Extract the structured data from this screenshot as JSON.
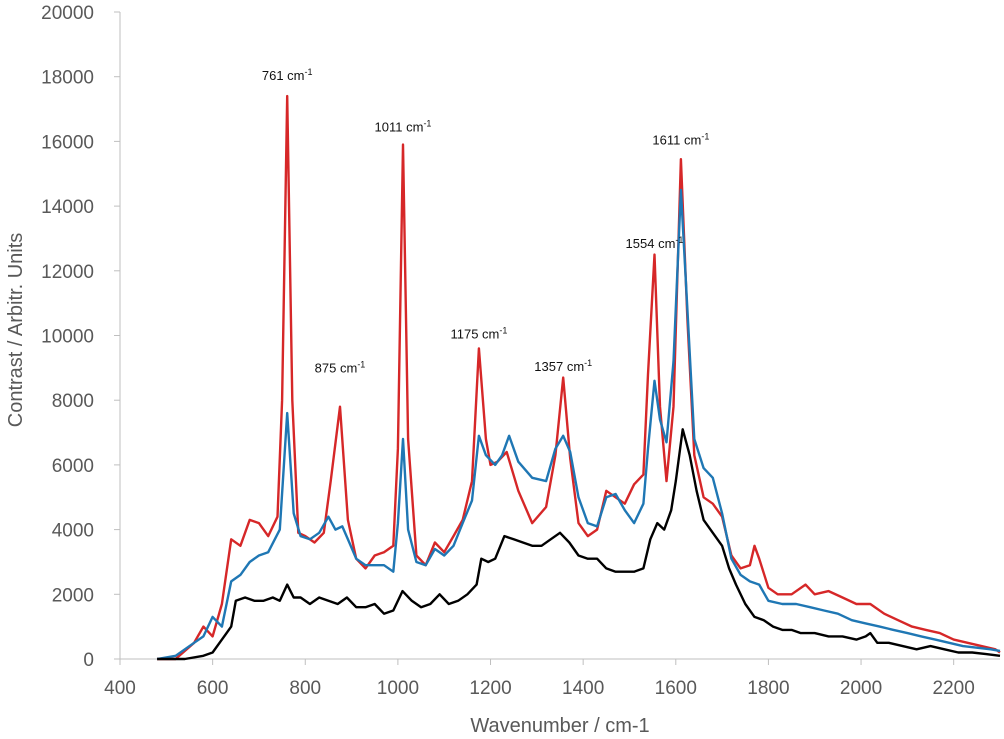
{
  "chart_data": {
    "type": "line",
    "title": "",
    "xlabel": "Wavenumber  / cm-1",
    "ylabel": "Contrast / Arbitr. Units",
    "xlim": [
      400,
      2300
    ],
    "ylim": [
      0,
      20000
    ],
    "xticks": [
      400,
      600,
      800,
      1000,
      1200,
      1400,
      1600,
      1800,
      2000,
      2200
    ],
    "yticks": [
      0,
      2000,
      4000,
      6000,
      8000,
      10000,
      12000,
      14000,
      16000,
      18000,
      20000
    ],
    "grid": false,
    "legend": "none",
    "annotations": [
      {
        "num": "761",
        "unit": " cm",
        "sup": "-1",
        "x": 761,
        "y": 17900
      },
      {
        "num": "875",
        "unit": " cm",
        "sup": "-1",
        "x": 875,
        "y": 8850
      },
      {
        "num": "1011",
        "unit": " cm",
        "sup": "-1",
        "x": 1011,
        "y": 16300
      },
      {
        "num": "1175",
        "unit": " cm",
        "sup": "-1",
        "x": 1175,
        "y": 9900
      },
      {
        "num": "1357",
        "unit": " cm",
        "sup": "-1",
        "x": 1357,
        "y": 8900
      },
      {
        "num": "1554",
        "unit": " cm",
        "sup": "-1",
        "x": 1554,
        "y": 12700
      },
      {
        "num": "1611",
        "unit": " cm",
        "sup": "-1",
        "x": 1611,
        "y": 15900
      }
    ],
    "series": [
      {
        "color": "#d62728",
        "points": [
          [
            480,
            0
          ],
          [
            520,
            0
          ],
          [
            560,
            500
          ],
          [
            580,
            1000
          ],
          [
            600,
            700
          ],
          [
            620,
            1700
          ],
          [
            640,
            3700
          ],
          [
            660,
            3500
          ],
          [
            680,
            4300
          ],
          [
            700,
            4200
          ],
          [
            720,
            3800
          ],
          [
            740,
            4400
          ],
          [
            750,
            8000
          ],
          [
            761,
            17400
          ],
          [
            772,
            8000
          ],
          [
            785,
            3900
          ],
          [
            800,
            3800
          ],
          [
            820,
            3600
          ],
          [
            840,
            3900
          ],
          [
            855,
            5500
          ],
          [
            875,
            7800
          ],
          [
            892,
            4300
          ],
          [
            910,
            3100
          ],
          [
            930,
            2800
          ],
          [
            950,
            3200
          ],
          [
            970,
            3300
          ],
          [
            990,
            3500
          ],
          [
            1000,
            6500
          ],
          [
            1011,
            15900
          ],
          [
            1022,
            6800
          ],
          [
            1040,
            3200
          ],
          [
            1060,
            2900
          ],
          [
            1080,
            3600
          ],
          [
            1100,
            3300
          ],
          [
            1120,
            3800
          ],
          [
            1140,
            4300
          ],
          [
            1160,
            5500
          ],
          [
            1175,
            9600
          ],
          [
            1190,
            6800
          ],
          [
            1200,
            6000
          ],
          [
            1215,
            6100
          ],
          [
            1235,
            6400
          ],
          [
            1260,
            5200
          ],
          [
            1290,
            4200
          ],
          [
            1320,
            4700
          ],
          [
            1340,
            6300
          ],
          [
            1357,
            8700
          ],
          [
            1372,
            6200
          ],
          [
            1390,
            4200
          ],
          [
            1410,
            3800
          ],
          [
            1430,
            4000
          ],
          [
            1450,
            5200
          ],
          [
            1470,
            5000
          ],
          [
            1490,
            4800
          ],
          [
            1510,
            5400
          ],
          [
            1530,
            5700
          ],
          [
            1540,
            8800
          ],
          [
            1554,
            12500
          ],
          [
            1566,
            7800
          ],
          [
            1580,
            5500
          ],
          [
            1595,
            7800
          ],
          [
            1611,
            15450
          ],
          [
            1625,
            10500
          ],
          [
            1640,
            6300
          ],
          [
            1660,
            5000
          ],
          [
            1680,
            4800
          ],
          [
            1700,
            4400
          ],
          [
            1720,
            3200
          ],
          [
            1740,
            2800
          ],
          [
            1760,
            2900
          ],
          [
            1770,
            3500
          ],
          [
            1780,
            3100
          ],
          [
            1800,
            2200
          ],
          [
            1820,
            2000
          ],
          [
            1850,
            2000
          ],
          [
            1880,
            2300
          ],
          [
            1900,
            2000
          ],
          [
            1930,
            2100
          ],
          [
            1960,
            1900
          ],
          [
            1990,
            1700
          ],
          [
            2020,
            1700
          ],
          [
            2050,
            1400
          ],
          [
            2080,
            1200
          ],
          [
            2110,
            1000
          ],
          [
            2140,
            900
          ],
          [
            2170,
            800
          ],
          [
            2200,
            600
          ],
          [
            2230,
            500
          ],
          [
            2260,
            400
          ],
          [
            2290,
            300
          ],
          [
            2300,
            200
          ]
        ]
      },
      {
        "color": "#1f77b4",
        "points": [
          [
            480,
            0
          ],
          [
            520,
            100
          ],
          [
            560,
            500
          ],
          [
            580,
            700
          ],
          [
            600,
            1300
          ],
          [
            620,
            1000
          ],
          [
            640,
            2400
          ],
          [
            660,
            2600
          ],
          [
            680,
            3000
          ],
          [
            700,
            3200
          ],
          [
            720,
            3300
          ],
          [
            745,
            4000
          ],
          [
            761,
            7600
          ],
          [
            775,
            4500
          ],
          [
            790,
            3800
          ],
          [
            810,
            3700
          ],
          [
            830,
            3900
          ],
          [
            850,
            4400
          ],
          [
            865,
            4000
          ],
          [
            880,
            4100
          ],
          [
            895,
            3600
          ],
          [
            910,
            3100
          ],
          [
            930,
            2900
          ],
          [
            950,
            2900
          ],
          [
            970,
            2900
          ],
          [
            990,
            2700
          ],
          [
            1000,
            4200
          ],
          [
            1011,
            6800
          ],
          [
            1022,
            4000
          ],
          [
            1040,
            3000
          ],
          [
            1060,
            2900
          ],
          [
            1080,
            3400
          ],
          [
            1100,
            3200
          ],
          [
            1120,
            3500
          ],
          [
            1140,
            4200
          ],
          [
            1160,
            4900
          ],
          [
            1175,
            6900
          ],
          [
            1190,
            6300
          ],
          [
            1210,
            6000
          ],
          [
            1225,
            6300
          ],
          [
            1240,
            6900
          ],
          [
            1260,
            6100
          ],
          [
            1290,
            5600
          ],
          [
            1320,
            5500
          ],
          [
            1340,
            6500
          ],
          [
            1357,
            6900
          ],
          [
            1372,
            6400
          ],
          [
            1390,
            5000
          ],
          [
            1410,
            4200
          ],
          [
            1430,
            4100
          ],
          [
            1450,
            5000
          ],
          [
            1470,
            5100
          ],
          [
            1490,
            4600
          ],
          [
            1510,
            4200
          ],
          [
            1530,
            4800
          ],
          [
            1540,
            6500
          ],
          [
            1554,
            8600
          ],
          [
            1566,
            7400
          ],
          [
            1580,
            6700
          ],
          [
            1595,
            9200
          ],
          [
            1611,
            14500
          ],
          [
            1625,
            10800
          ],
          [
            1640,
            6800
          ],
          [
            1660,
            5900
          ],
          [
            1680,
            5600
          ],
          [
            1700,
            4500
          ],
          [
            1720,
            3100
          ],
          [
            1740,
            2600
          ],
          [
            1760,
            2400
          ],
          [
            1780,
            2300
          ],
          [
            1800,
            1800
          ],
          [
            1830,
            1700
          ],
          [
            1860,
            1700
          ],
          [
            1890,
            1600
          ],
          [
            1920,
            1500
          ],
          [
            1950,
            1400
          ],
          [
            1980,
            1200
          ],
          [
            2010,
            1100
          ],
          [
            2040,
            1000
          ],
          [
            2070,
            900
          ],
          [
            2100,
            800
          ],
          [
            2130,
            700
          ],
          [
            2160,
            600
          ],
          [
            2190,
            500
          ],
          [
            2220,
            400
          ],
          [
            2250,
            350
          ],
          [
            2280,
            300
          ],
          [
            2300,
            250
          ]
        ]
      },
      {
        "color": "#000000",
        "points": [
          [
            480,
            0
          ],
          [
            540,
            0
          ],
          [
            580,
            100
          ],
          [
            600,
            200
          ],
          [
            620,
            600
          ],
          [
            640,
            1000
          ],
          [
            650,
            1800
          ],
          [
            670,
            1900
          ],
          [
            690,
            1800
          ],
          [
            710,
            1800
          ],
          [
            730,
            1900
          ],
          [
            745,
            1800
          ],
          [
            761,
            2300
          ],
          [
            775,
            1900
          ],
          [
            790,
            1900
          ],
          [
            810,
            1700
          ],
          [
            830,
            1900
          ],
          [
            850,
            1800
          ],
          [
            870,
            1700
          ],
          [
            890,
            1900
          ],
          [
            910,
            1600
          ],
          [
            930,
            1600
          ],
          [
            950,
            1700
          ],
          [
            970,
            1400
          ],
          [
            990,
            1500
          ],
          [
            1010,
            2100
          ],
          [
            1030,
            1800
          ],
          [
            1050,
            1600
          ],
          [
            1070,
            1700
          ],
          [
            1090,
            2000
          ],
          [
            1110,
            1700
          ],
          [
            1130,
            1800
          ],
          [
            1150,
            2000
          ],
          [
            1170,
            2300
          ],
          [
            1180,
            3100
          ],
          [
            1195,
            3000
          ],
          [
            1210,
            3100
          ],
          [
            1230,
            3800
          ],
          [
            1250,
            3700
          ],
          [
            1270,
            3600
          ],
          [
            1290,
            3500
          ],
          [
            1310,
            3500
          ],
          [
            1330,
            3700
          ],
          [
            1350,
            3900
          ],
          [
            1370,
            3600
          ],
          [
            1390,
            3200
          ],
          [
            1410,
            3100
          ],
          [
            1430,
            3100
          ],
          [
            1450,
            2800
          ],
          [
            1470,
            2700
          ],
          [
            1490,
            2700
          ],
          [
            1510,
            2700
          ],
          [
            1530,
            2800
          ],
          [
            1545,
            3700
          ],
          [
            1560,
            4200
          ],
          [
            1575,
            4000
          ],
          [
            1590,
            4600
          ],
          [
            1600,
            5500
          ],
          [
            1615,
            7100
          ],
          [
            1630,
            6300
          ],
          [
            1645,
            5200
          ],
          [
            1660,
            4300
          ],
          [
            1680,
            3900
          ],
          [
            1700,
            3500
          ],
          [
            1715,
            2800
          ],
          [
            1730,
            2300
          ],
          [
            1750,
            1700
          ],
          [
            1770,
            1300
          ],
          [
            1790,
            1200
          ],
          [
            1810,
            1000
          ],
          [
            1830,
            900
          ],
          [
            1850,
            900
          ],
          [
            1870,
            800
          ],
          [
            1900,
            800
          ],
          [
            1930,
            700
          ],
          [
            1960,
            700
          ],
          [
            1990,
            600
          ],
          [
            2010,
            700
          ],
          [
            2020,
            800
          ],
          [
            2035,
            500
          ],
          [
            2060,
            500
          ],
          [
            2090,
            400
          ],
          [
            2120,
            300
          ],
          [
            2150,
            400
          ],
          [
            2180,
            300
          ],
          [
            2210,
            200
          ],
          [
            2240,
            200
          ],
          [
            2270,
            150
          ],
          [
            2300,
            100
          ]
        ]
      }
    ]
  }
}
